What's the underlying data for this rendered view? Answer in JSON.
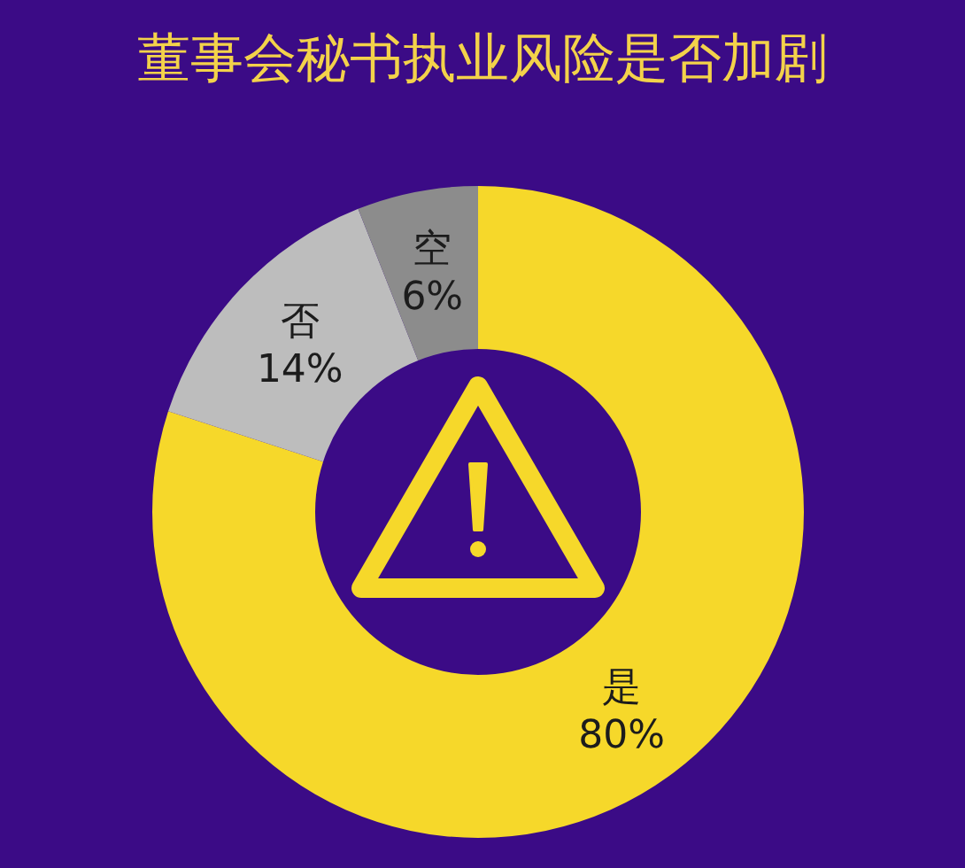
{
  "chart_data": {
    "type": "donut",
    "title": "董事会秘书执业风险是否加剧",
    "categories": [
      "是",
      "否",
      "空"
    ],
    "values": [
      80,
      14,
      6
    ],
    "colors": [
      "#f6d82a",
      "#bdbdbd",
      "#8c8c8c"
    ],
    "value_labels": [
      "80%",
      "14%",
      "6%"
    ]
  }
}
